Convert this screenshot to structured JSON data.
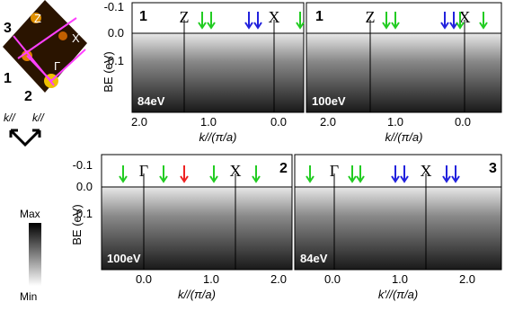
{
  "inset": {
    "labels": [
      "3",
      "Z",
      "X",
      "Γ",
      "1",
      "2"
    ],
    "axis_labels": [
      "k//",
      "k//"
    ]
  },
  "y_axis": {
    "label": "BE (eV)",
    "ticks": [
      "-0.1",
      "0.0",
      "0.1"
    ]
  },
  "panels": [
    {
      "number": "1",
      "labels": [
        "Z",
        "X"
      ],
      "energy": "84eV",
      "xticks": [
        "2.0",
        "1.0",
        "0.0"
      ],
      "xlabel": "k//(π/a)"
    },
    {
      "number": "1",
      "labels": [
        "Z",
        "X"
      ],
      "energy": "100eV",
      "xticks": [
        "2.0",
        "1.0",
        "0.0"
      ],
      "xlabel": "k//(π/a)"
    },
    {
      "number": "2",
      "labels": [
        "Γ",
        "X"
      ],
      "energy": "100eV",
      "xticks": [
        "0.0",
        "1.0",
        "2.0"
      ],
      "xlabel": "k//(π/a)"
    },
    {
      "number": "3",
      "labels": [
        "Γ",
        "X"
      ],
      "energy": "84eV",
      "xticks": [
        "0.0",
        "1.0",
        "2.0"
      ],
      "xlabel": "k′//(π/a)"
    }
  ],
  "colorbar": {
    "max": "Max",
    "min": "Min"
  }
}
